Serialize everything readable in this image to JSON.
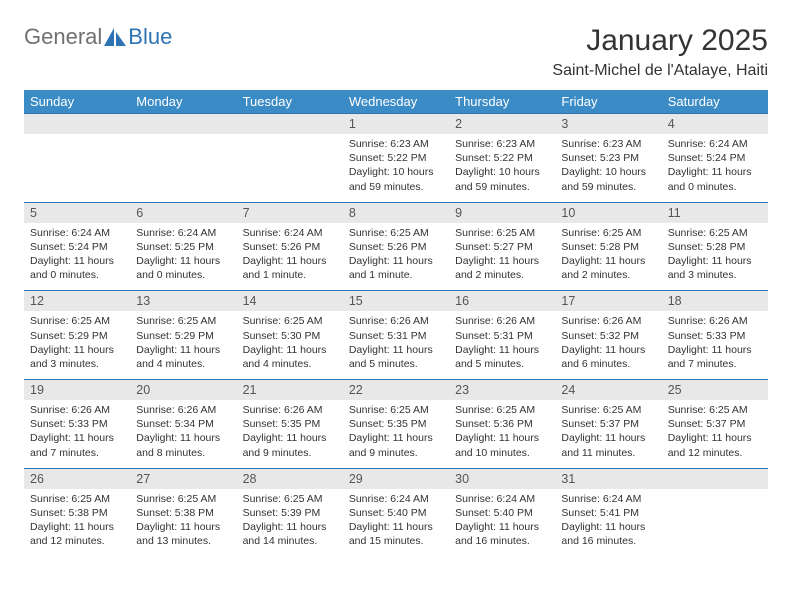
{
  "logo": {
    "text1": "General",
    "text2": "Blue"
  },
  "title": "January 2025",
  "subtitle": "Saint-Michel de l'Atalaye, Haiti",
  "colors": {
    "headerBg": "#3b8bc6",
    "daynumBg": "#e8e8e8",
    "borderTop": "#2e74b5",
    "logoGray": "#707070",
    "logoBlue": "#2e74b5"
  },
  "dayHeaders": [
    "Sunday",
    "Monday",
    "Tuesday",
    "Wednesday",
    "Thursday",
    "Friday",
    "Saturday"
  ],
  "weeks": [
    [
      null,
      null,
      null,
      {
        "n": "1",
        "sr": "6:23 AM",
        "ss": "5:22 PM",
        "dl": "10 hours and 59 minutes."
      },
      {
        "n": "2",
        "sr": "6:23 AM",
        "ss": "5:22 PM",
        "dl": "10 hours and 59 minutes."
      },
      {
        "n": "3",
        "sr": "6:23 AM",
        "ss": "5:23 PM",
        "dl": "10 hours and 59 minutes."
      },
      {
        "n": "4",
        "sr": "6:24 AM",
        "ss": "5:24 PM",
        "dl": "11 hours and 0 minutes."
      }
    ],
    [
      {
        "n": "5",
        "sr": "6:24 AM",
        "ss": "5:24 PM",
        "dl": "11 hours and 0 minutes."
      },
      {
        "n": "6",
        "sr": "6:24 AM",
        "ss": "5:25 PM",
        "dl": "11 hours and 0 minutes."
      },
      {
        "n": "7",
        "sr": "6:24 AM",
        "ss": "5:26 PM",
        "dl": "11 hours and 1 minute."
      },
      {
        "n": "8",
        "sr": "6:25 AM",
        "ss": "5:26 PM",
        "dl": "11 hours and 1 minute."
      },
      {
        "n": "9",
        "sr": "6:25 AM",
        "ss": "5:27 PM",
        "dl": "11 hours and 2 minutes."
      },
      {
        "n": "10",
        "sr": "6:25 AM",
        "ss": "5:28 PM",
        "dl": "11 hours and 2 minutes."
      },
      {
        "n": "11",
        "sr": "6:25 AM",
        "ss": "5:28 PM",
        "dl": "11 hours and 3 minutes."
      }
    ],
    [
      {
        "n": "12",
        "sr": "6:25 AM",
        "ss": "5:29 PM",
        "dl": "11 hours and 3 minutes."
      },
      {
        "n": "13",
        "sr": "6:25 AM",
        "ss": "5:29 PM",
        "dl": "11 hours and 4 minutes."
      },
      {
        "n": "14",
        "sr": "6:25 AM",
        "ss": "5:30 PM",
        "dl": "11 hours and 4 minutes."
      },
      {
        "n": "15",
        "sr": "6:26 AM",
        "ss": "5:31 PM",
        "dl": "11 hours and 5 minutes."
      },
      {
        "n": "16",
        "sr": "6:26 AM",
        "ss": "5:31 PM",
        "dl": "11 hours and 5 minutes."
      },
      {
        "n": "17",
        "sr": "6:26 AM",
        "ss": "5:32 PM",
        "dl": "11 hours and 6 minutes."
      },
      {
        "n": "18",
        "sr": "6:26 AM",
        "ss": "5:33 PM",
        "dl": "11 hours and 7 minutes."
      }
    ],
    [
      {
        "n": "19",
        "sr": "6:26 AM",
        "ss": "5:33 PM",
        "dl": "11 hours and 7 minutes."
      },
      {
        "n": "20",
        "sr": "6:26 AM",
        "ss": "5:34 PM",
        "dl": "11 hours and 8 minutes."
      },
      {
        "n": "21",
        "sr": "6:26 AM",
        "ss": "5:35 PM",
        "dl": "11 hours and 9 minutes."
      },
      {
        "n": "22",
        "sr": "6:25 AM",
        "ss": "5:35 PM",
        "dl": "11 hours and 9 minutes."
      },
      {
        "n": "23",
        "sr": "6:25 AM",
        "ss": "5:36 PM",
        "dl": "11 hours and 10 minutes."
      },
      {
        "n": "24",
        "sr": "6:25 AM",
        "ss": "5:37 PM",
        "dl": "11 hours and 11 minutes."
      },
      {
        "n": "25",
        "sr": "6:25 AM",
        "ss": "5:37 PM",
        "dl": "11 hours and 12 minutes."
      }
    ],
    [
      {
        "n": "26",
        "sr": "6:25 AM",
        "ss": "5:38 PM",
        "dl": "11 hours and 12 minutes."
      },
      {
        "n": "27",
        "sr": "6:25 AM",
        "ss": "5:38 PM",
        "dl": "11 hours and 13 minutes."
      },
      {
        "n": "28",
        "sr": "6:25 AM",
        "ss": "5:39 PM",
        "dl": "11 hours and 14 minutes."
      },
      {
        "n": "29",
        "sr": "6:24 AM",
        "ss": "5:40 PM",
        "dl": "11 hours and 15 minutes."
      },
      {
        "n": "30",
        "sr": "6:24 AM",
        "ss": "5:40 PM",
        "dl": "11 hours and 16 minutes."
      },
      {
        "n": "31",
        "sr": "6:24 AM",
        "ss": "5:41 PM",
        "dl": "11 hours and 16 minutes."
      },
      null
    ]
  ],
  "labels": {
    "sunrise": "Sunrise: ",
    "sunset": "Sunset: ",
    "daylight": "Daylight: "
  }
}
